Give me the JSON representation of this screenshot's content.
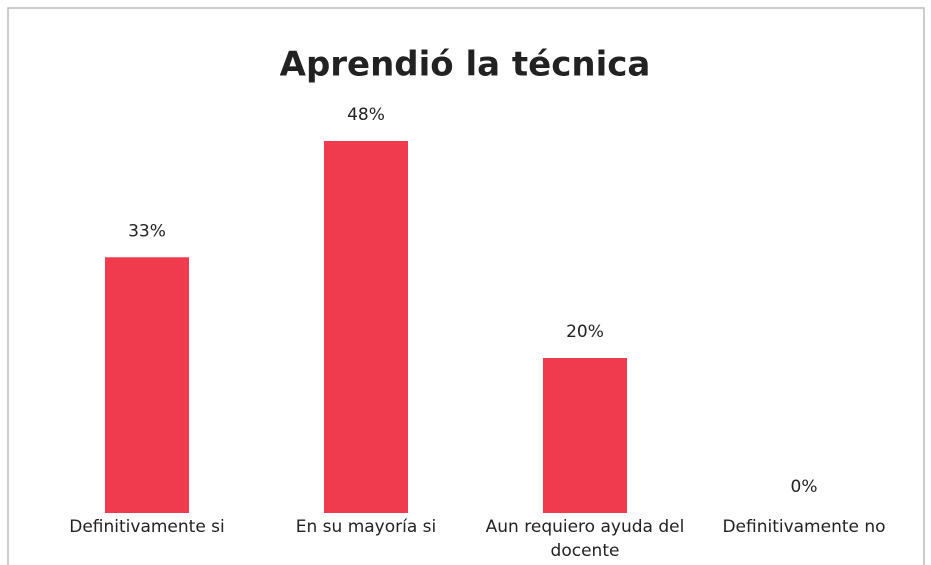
{
  "chart_data": {
    "type": "bar",
    "title": "Aprendió la técnica",
    "categories": [
      "Definitivamente si",
      "En su mayoría si",
      "Aun requiero ayuda del docente",
      "Definitivamente no"
    ],
    "values": [
      33,
      48,
      20,
      0
    ],
    "value_labels": [
      "33%",
      "48%",
      "20%",
      "0%"
    ],
    "color": "#f03a4e"
  }
}
